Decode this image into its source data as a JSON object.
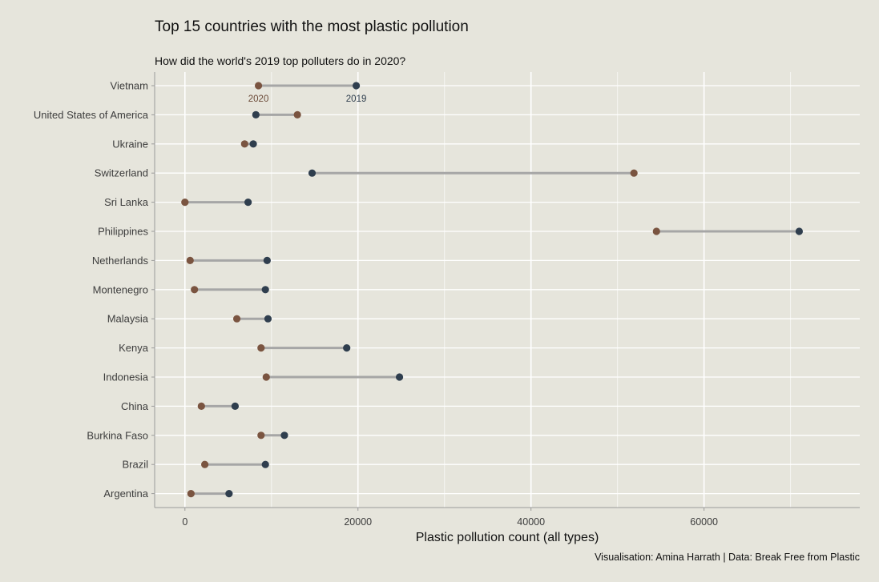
{
  "chart_data": {
    "type": "dumbbell",
    "title": "Top 15 countries with the most plastic pollution",
    "subtitle": "How did the world's 2019 top polluters do in 2020?",
    "xlabel": "Plastic pollution count (all types)",
    "ylabel": "",
    "caption": "Visualisation: Amina Harrath | Data: Break Free from Plastic",
    "xlim": [
      -3500,
      78000
    ],
    "x_ticks": [
      0,
      20000,
      40000,
      60000
    ],
    "x_tick_labels": [
      "0",
      "20000",
      "40000",
      "60000"
    ],
    "grid": true,
    "series": [
      {
        "name": "2019",
        "color": "#2f3e4e"
      },
      {
        "name": "2020",
        "color": "#7a5440"
      }
    ],
    "segment_color": "#a6a6a6",
    "annotations": [
      {
        "text": "2020",
        "x": 8500,
        "category": "Vietnam",
        "color": "#6b4a38"
      },
      {
        "text": "2019",
        "x": 19800,
        "category": "Vietnam",
        "color": "#2f3e4e"
      }
    ],
    "categories": [
      "Vietnam",
      "United States of America",
      "Ukraine",
      "Switzerland",
      "Sri Lanka",
      "Philippines",
      "Netherlands",
      "Montenegro",
      "Malaysia",
      "Kenya",
      "Indonesia",
      "China",
      "Burkina Faso",
      "Brazil",
      "Argentina"
    ],
    "values_2019": [
      19800,
      8200,
      7900,
      14700,
      7300,
      71000,
      9500,
      9300,
      9600,
      18700,
      24800,
      5800,
      11500,
      9300,
      5100
    ],
    "values_2020": [
      8500,
      13000,
      6900,
      51900,
      0,
      54500,
      600,
      1100,
      6000,
      8800,
      9400,
      1900,
      8800,
      2300,
      700
    ]
  }
}
